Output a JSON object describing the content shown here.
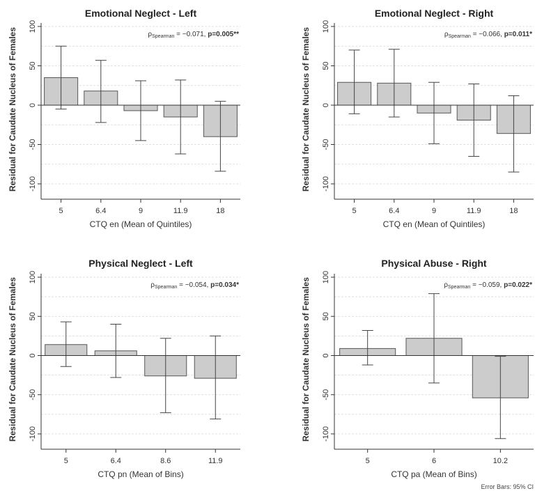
{
  "footer_note": "Error Bars: 95% CI",
  "chart_data": [
    {
      "type": "bar",
      "title": "Emotional Neglect - Left",
      "xlabel": "CTQ en (Mean of Quintiles)",
      "ylabel": "Residual for Caudate Nucleus of Females",
      "categories": [
        "5",
        "6.4",
        "9",
        "11.9",
        "18"
      ],
      "values": [
        35,
        18,
        -7,
        -15,
        -40
      ],
      "ci_lower": [
        -5,
        -22,
        -45,
        -62,
        -84
      ],
      "ci_upper": [
        75,
        57,
        31,
        32,
        5
      ],
      "ylim": [
        -110,
        100
      ],
      "yticks": [
        100,
        50,
        0,
        -50,
        -100
      ],
      "grid": true,
      "stat": {
        "rho_symbol": "ρ",
        "rho_sub": "Spearman",
        "rho_value": " = −0.071, ",
        "p_text": "p=0.005**"
      }
    },
    {
      "type": "bar",
      "title": "Emotional Neglect - Right",
      "xlabel": "CTQ en (Mean of Quintiles)",
      "ylabel": "Residual for Caudate Nucleus of Females",
      "categories": [
        "5",
        "6.4",
        "9",
        "11.9",
        "18"
      ],
      "values": [
        29,
        28,
        -10,
        -19,
        -36
      ],
      "ci_lower": [
        -11,
        -15,
        -49,
        -65,
        -85
      ],
      "ci_upper": [
        70,
        71,
        29,
        27,
        12
      ],
      "ylim": [
        -110,
        100
      ],
      "yticks": [
        100,
        50,
        0,
        -50,
        -100
      ],
      "grid": true,
      "stat": {
        "rho_symbol": "ρ",
        "rho_sub": "Spearman",
        "rho_value": " = −0.066, ",
        "p_text": "p=0.011*"
      }
    },
    {
      "type": "bar",
      "title": "Physical Neglect - Left",
      "xlabel": "CTQ pn (Mean of Bins)",
      "ylabel": "Residual for Caudate Nucleus of Females",
      "categories": [
        "5",
        "6.4",
        "8.6",
        "11.9"
      ],
      "values": [
        14,
        6,
        -26,
        -29
      ],
      "ci_lower": [
        -14,
        -28,
        -73,
        -81
      ],
      "ci_upper": [
        43,
        40,
        22,
        25
      ],
      "ylim": [
        -110,
        100
      ],
      "yticks": [
        100,
        50,
        0,
        -50,
        -100
      ],
      "grid": true,
      "stat": {
        "rho_symbol": "ρ",
        "rho_sub": "Spearman",
        "rho_value": " = −0.054, ",
        "p_text": "p=0.034*"
      }
    },
    {
      "type": "bar",
      "title": "Physical Abuse - Right",
      "xlabel": "CTQ pa (Mean of Bins)",
      "ylabel": "Residual for Caudate Nucleus of Females",
      "categories": [
        "5",
        "6",
        "10.2"
      ],
      "values": [
        9,
        22,
        -54
      ],
      "ci_lower": [
        -12,
        -35,
        -106
      ],
      "ci_upper": [
        32,
        79,
        -1
      ],
      "ylim": [
        -110,
        100
      ],
      "yticks": [
        100,
        50,
        0,
        -50,
        -100
      ],
      "grid": true,
      "stat": {
        "rho_symbol": "ρ",
        "rho_sub": "Spearman",
        "rho_value": " = −0.059, ",
        "p_text": "p=0.022*"
      }
    }
  ],
  "style": {
    "bar_fill": "#cccccc",
    "bar_stroke": "#555555",
    "grid_color": "#d6d6d6",
    "axis_color": "#333333",
    "errorbar_color": "#444444"
  }
}
